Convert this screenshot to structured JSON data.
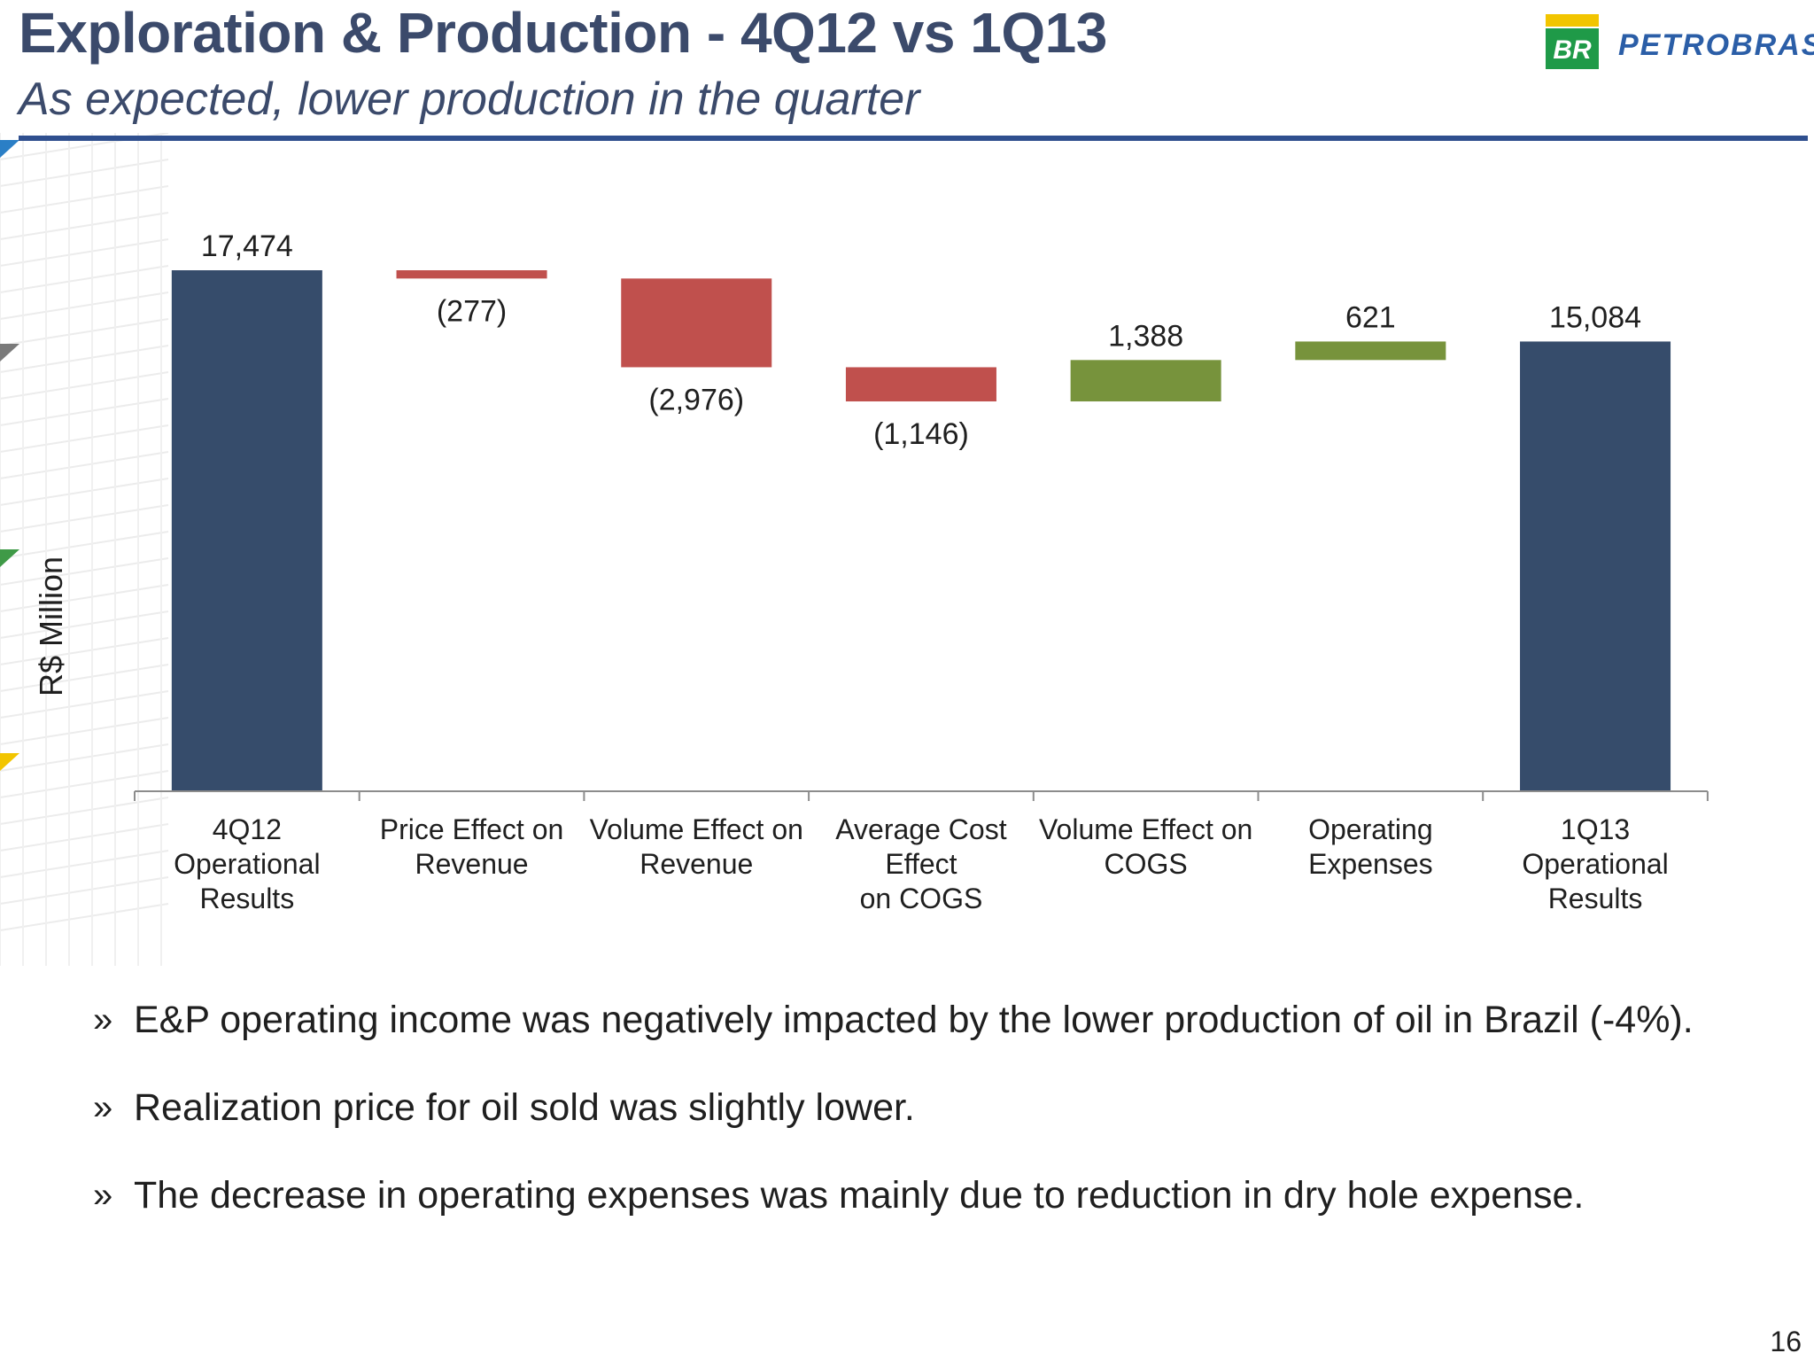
{
  "header": {
    "title": "Exploration & Production -  4Q12 vs 1Q13",
    "subtitle": "As expected, lower production in the quarter"
  },
  "logo": {
    "mark_text": "BR",
    "wordmark": "PETROBRAS",
    "colors": {
      "green": "#1f9a48",
      "yellow": "#f2c500",
      "blue": "#2b5ea7"
    }
  },
  "chart_data": {
    "type": "bar",
    "subtype": "waterfall",
    "ylabel": "R$ Million",
    "ylim": [
      0,
      17474
    ],
    "grid": false,
    "legend": false,
    "categories": [
      [
        "4Q12",
        "Operational Results"
      ],
      [
        "Price Effect on",
        "Revenue"
      ],
      [
        "Volume Effect on",
        "Revenue"
      ],
      [
        "Average Cost Effect",
        "on COGS"
      ],
      [
        "Volume Effect on",
        "COGS"
      ],
      [
        "Operating",
        "Expenses"
      ],
      [
        "1Q13",
        "Operational Results"
      ]
    ],
    "values": [
      17474,
      -277,
      -2976,
      -1146,
      1388,
      621,
      15084
    ],
    "kinds": [
      "total",
      "delta",
      "delta",
      "delta",
      "delta",
      "delta",
      "total"
    ],
    "value_labels": [
      "17,474",
      "(277)",
      "(2,976)",
      "(1,146)",
      "1,388",
      "621",
      "15,084"
    ],
    "colors": {
      "total": "#364c6b",
      "decrease": "#c0504d",
      "increase": "#77933c"
    }
  },
  "bullets": [
    "E&P operating income was negatively impacted by the lower production of oil in Brazil (-4%).",
    "Realization price for oil sold was slightly lower.",
    "The decrease in operating expenses was mainly due to reduction in dry hole expense."
  ],
  "bullet_marker": "»",
  "page_number": "16"
}
